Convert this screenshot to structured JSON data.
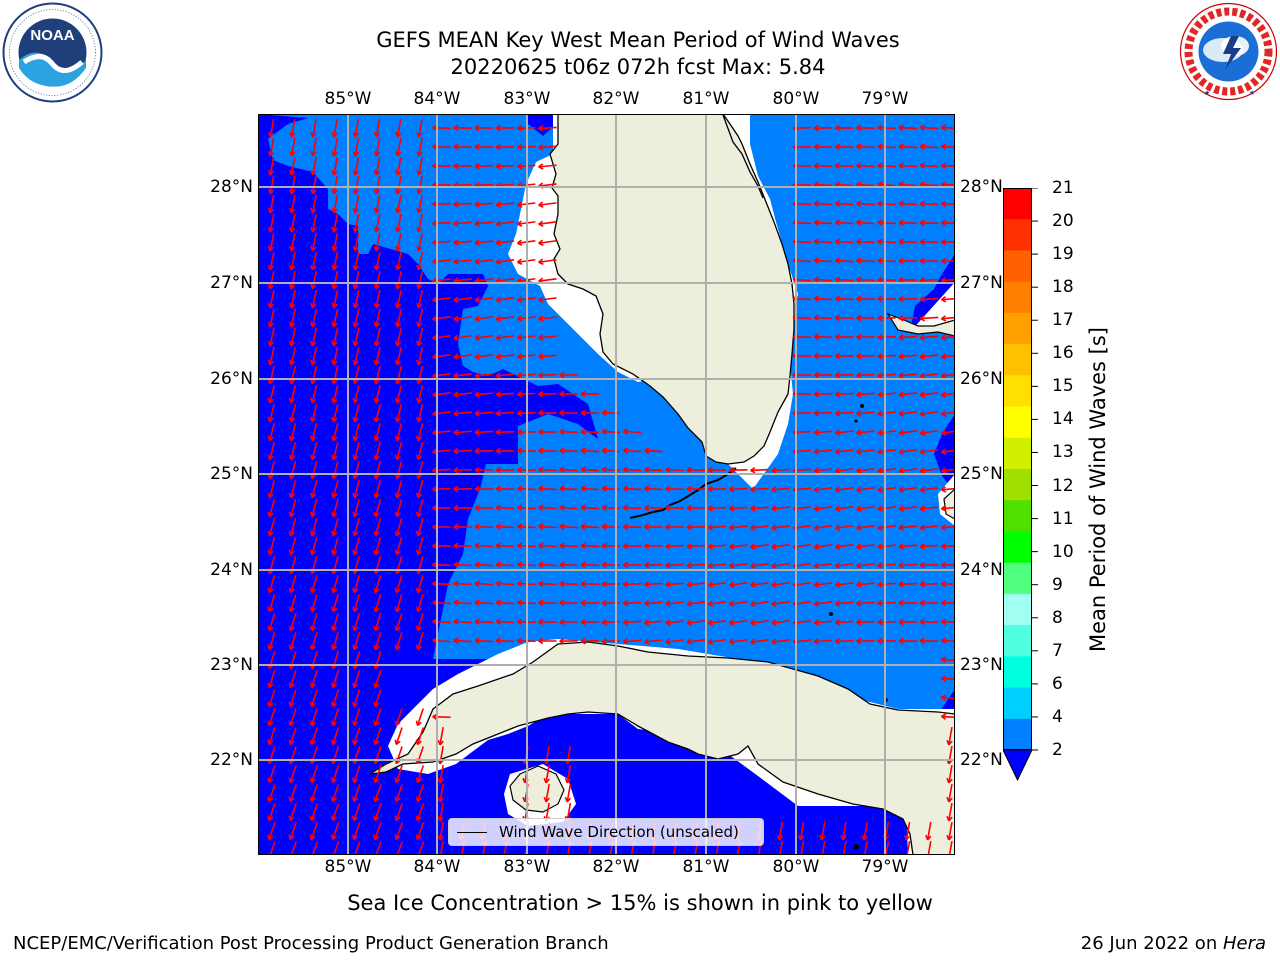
{
  "header": {
    "title_line1": "GEFS MEAN Key West Mean Period of Wind Waves",
    "title_line2": "20220625 t06z 072h fcst   Max: 5.84"
  },
  "logos": {
    "left": {
      "name": "NOAA",
      "ring_text": "NATIONAL OCEANIC AND ATMOSPHERIC ADMINISTRATION · U.S. DEPARTMENT OF COMMERCE"
    },
    "right": {
      "name": "NATIONAL WEATHER SERVICE"
    }
  },
  "map": {
    "lon_labels": [
      "85°W",
      "84°W",
      "83°W",
      "82°W",
      "81°W",
      "80°W",
      "79°W"
    ],
    "lat_labels": [
      "28°N",
      "27°N",
      "26°N",
      "25°N",
      "24°N",
      "23°N",
      "22°N"
    ],
    "legend_label": "Wind Wave Direction (unscaled)",
    "colors": {
      "band_2_4": "#0080ff",
      "below_2": "#0000ff",
      "land": "#eeeedd",
      "no_data": "#ffffff",
      "arrow": "#ff0000",
      "grid": "#b0b0b0"
    }
  },
  "colorbar": {
    "title": "Mean Period of Wind Waves [s]",
    "tick_labels": [
      "2",
      "4",
      "6",
      "7",
      "8",
      "9",
      "10",
      "11",
      "12",
      "13",
      "14",
      "15",
      "16",
      "17",
      "18",
      "19",
      "20",
      "21"
    ],
    "colors": [
      "#0080ff",
      "#00d0ff",
      "#00ffe0",
      "#50ffe0",
      "#a0fff0",
      "#50ff80",
      "#00ff00",
      "#50e000",
      "#a0e000",
      "#d0f000",
      "#ffff00",
      "#ffe000",
      "#ffc000",
      "#ffa000",
      "#ff8000",
      "#ff6000",
      "#ff3000",
      "#ff0000"
    ],
    "under_color": "#0000ff"
  },
  "notes": {
    "sea_ice": "Sea Ice Concentration > 15% is shown in pink to yellow",
    "credit": "NCEP/EMC/Verification Post Processing Product Generation Branch",
    "date": "26 Jun 2022 on ",
    "host": "Hera"
  }
}
